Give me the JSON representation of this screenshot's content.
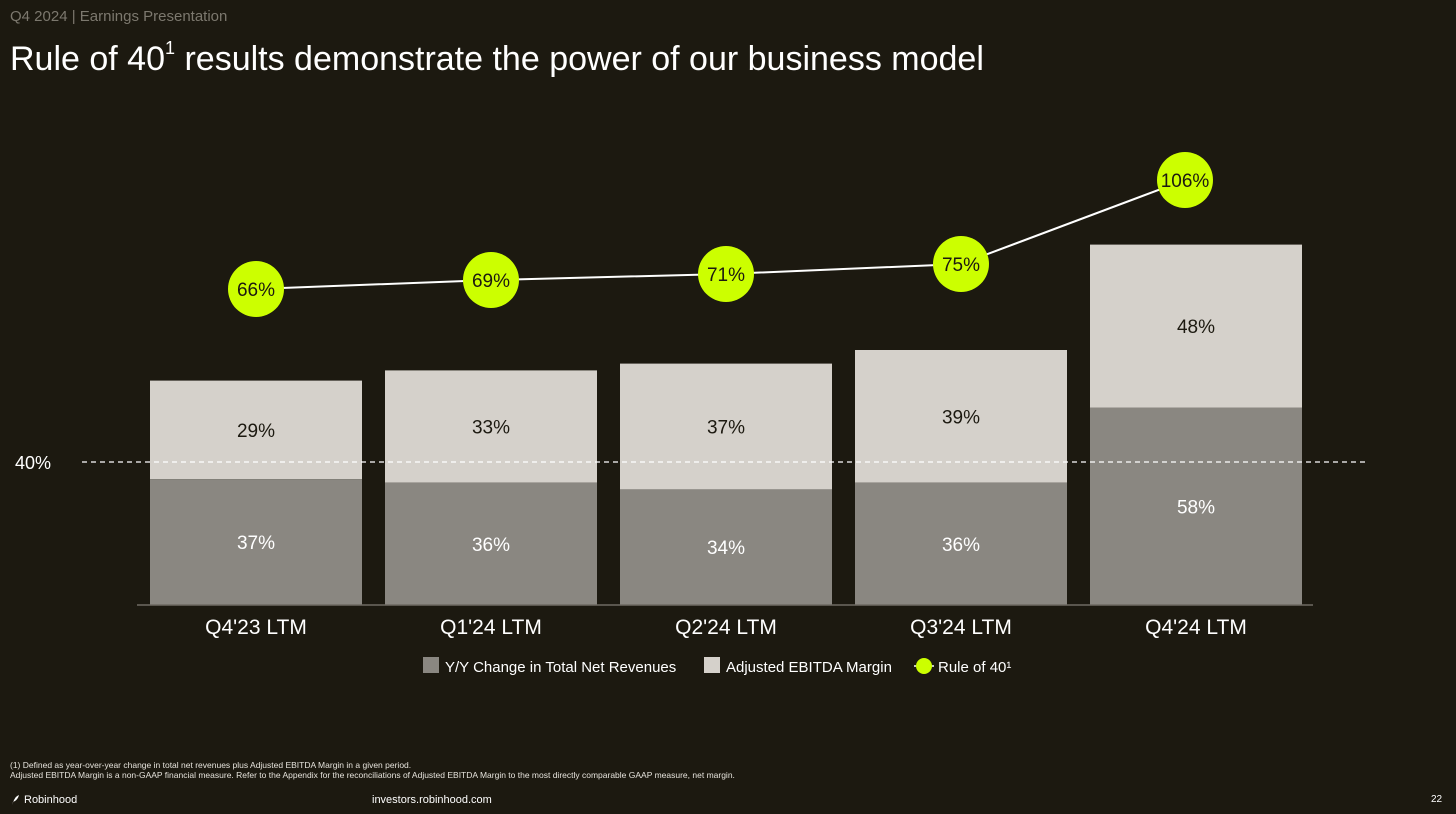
{
  "header": {
    "tag": "Q4 2024 | Earnings Presentation"
  },
  "title": {
    "main": "Rule of 40",
    "sup": "1",
    "rest": " results demonstrate the power of our business model"
  },
  "colors": {
    "background": "#1c1910",
    "revenue_bar": "#8a8781",
    "ebitda_bar": "#d5d1cb",
    "rule_marker": "#ccff00",
    "line": "#ffffff"
  },
  "chart_data": {
    "type": "bar",
    "stacked": true,
    "categories": [
      "Q4'23 LTM",
      "Q1'24 LTM",
      "Q2'24 LTM",
      "Q3'24 LTM",
      "Q4'24 LTM"
    ],
    "series": [
      {
        "name": "Y/Y Change in Total Net Revenues",
        "values": [
          37,
          36,
          34,
          36,
          58
        ],
        "labels": [
          "37%",
          "36%",
          "34%",
          "36%",
          "58%"
        ]
      },
      {
        "name": "Adjusted EBITDA Margin",
        "values": [
          29,
          33,
          37,
          39,
          48
        ],
        "labels": [
          "29%",
          "33%",
          "37%",
          "39%",
          "48%"
        ]
      }
    ],
    "line_series": {
      "name": "Rule of 40¹",
      "values": [
        66,
        69,
        71,
        75,
        106
      ],
      "labels": [
        "66%",
        "69%",
        "71%",
        "75%",
        "106%"
      ]
    },
    "reference_line": {
      "value": 40,
      "label": "40%",
      "style": "dashed"
    },
    "legend_position": "bottom-center",
    "grid": false
  },
  "footnotes": [
    "(1) Defined as year-over-year change in total net revenues plus Adjusted EBITDA Margin in a given period.",
    "Adjusted EBITDA Margin is a non-GAAP financial measure. Refer to the Appendix for the reconciliations of Adjusted EBITDA Margin to the most directly comparable GAAP measure, net margin."
  ],
  "footer": {
    "brand": "Robinhood",
    "site": "investors.robinhood.com",
    "page": "22"
  }
}
